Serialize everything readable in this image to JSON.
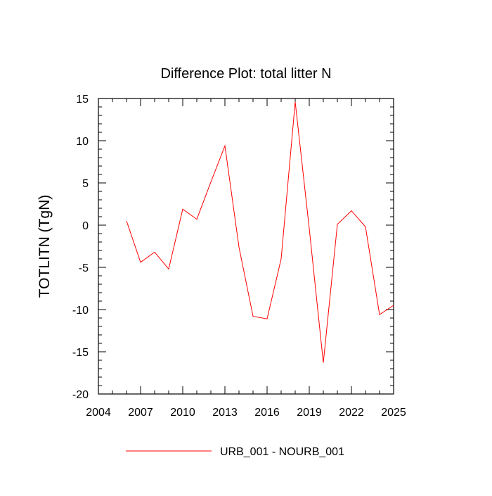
{
  "chart_data": {
    "type": "line",
    "title": "Difference Plot: total litter N",
    "xlabel": "",
    "ylabel": "TOTLITN  (TgN)",
    "xlim": [
      2004,
      2025
    ],
    "ylim": [
      -20,
      15
    ],
    "xticks": [
      2004,
      2007,
      2010,
      2013,
      2016,
      2019,
      2022,
      2025
    ],
    "yticks": [
      -20,
      -15,
      -10,
      -5,
      0,
      5,
      10,
      15
    ],
    "grid": false,
    "legend_position": "bottom",
    "series": [
      {
        "name": "URB_001 - NOURB_001",
        "color": "#ff0000",
        "x": [
          2006,
          2007,
          2008,
          2009,
          2010,
          2011,
          2012,
          2013,
          2014,
          2015,
          2016,
          2017,
          2018,
          2019,
          2020,
          2021,
          2022,
          2023,
          2024,
          2025
        ],
        "y": [
          0.5,
          -4.4,
          -3.2,
          -5.2,
          1.9,
          0.7,
          5.1,
          9.4,
          -2.6,
          -10.8,
          -11.1,
          -4.0,
          14.6,
          -0.4,
          -16.3,
          0.1,
          1.7,
          -0.2,
          -10.6,
          -9.5
        ]
      }
    ]
  }
}
